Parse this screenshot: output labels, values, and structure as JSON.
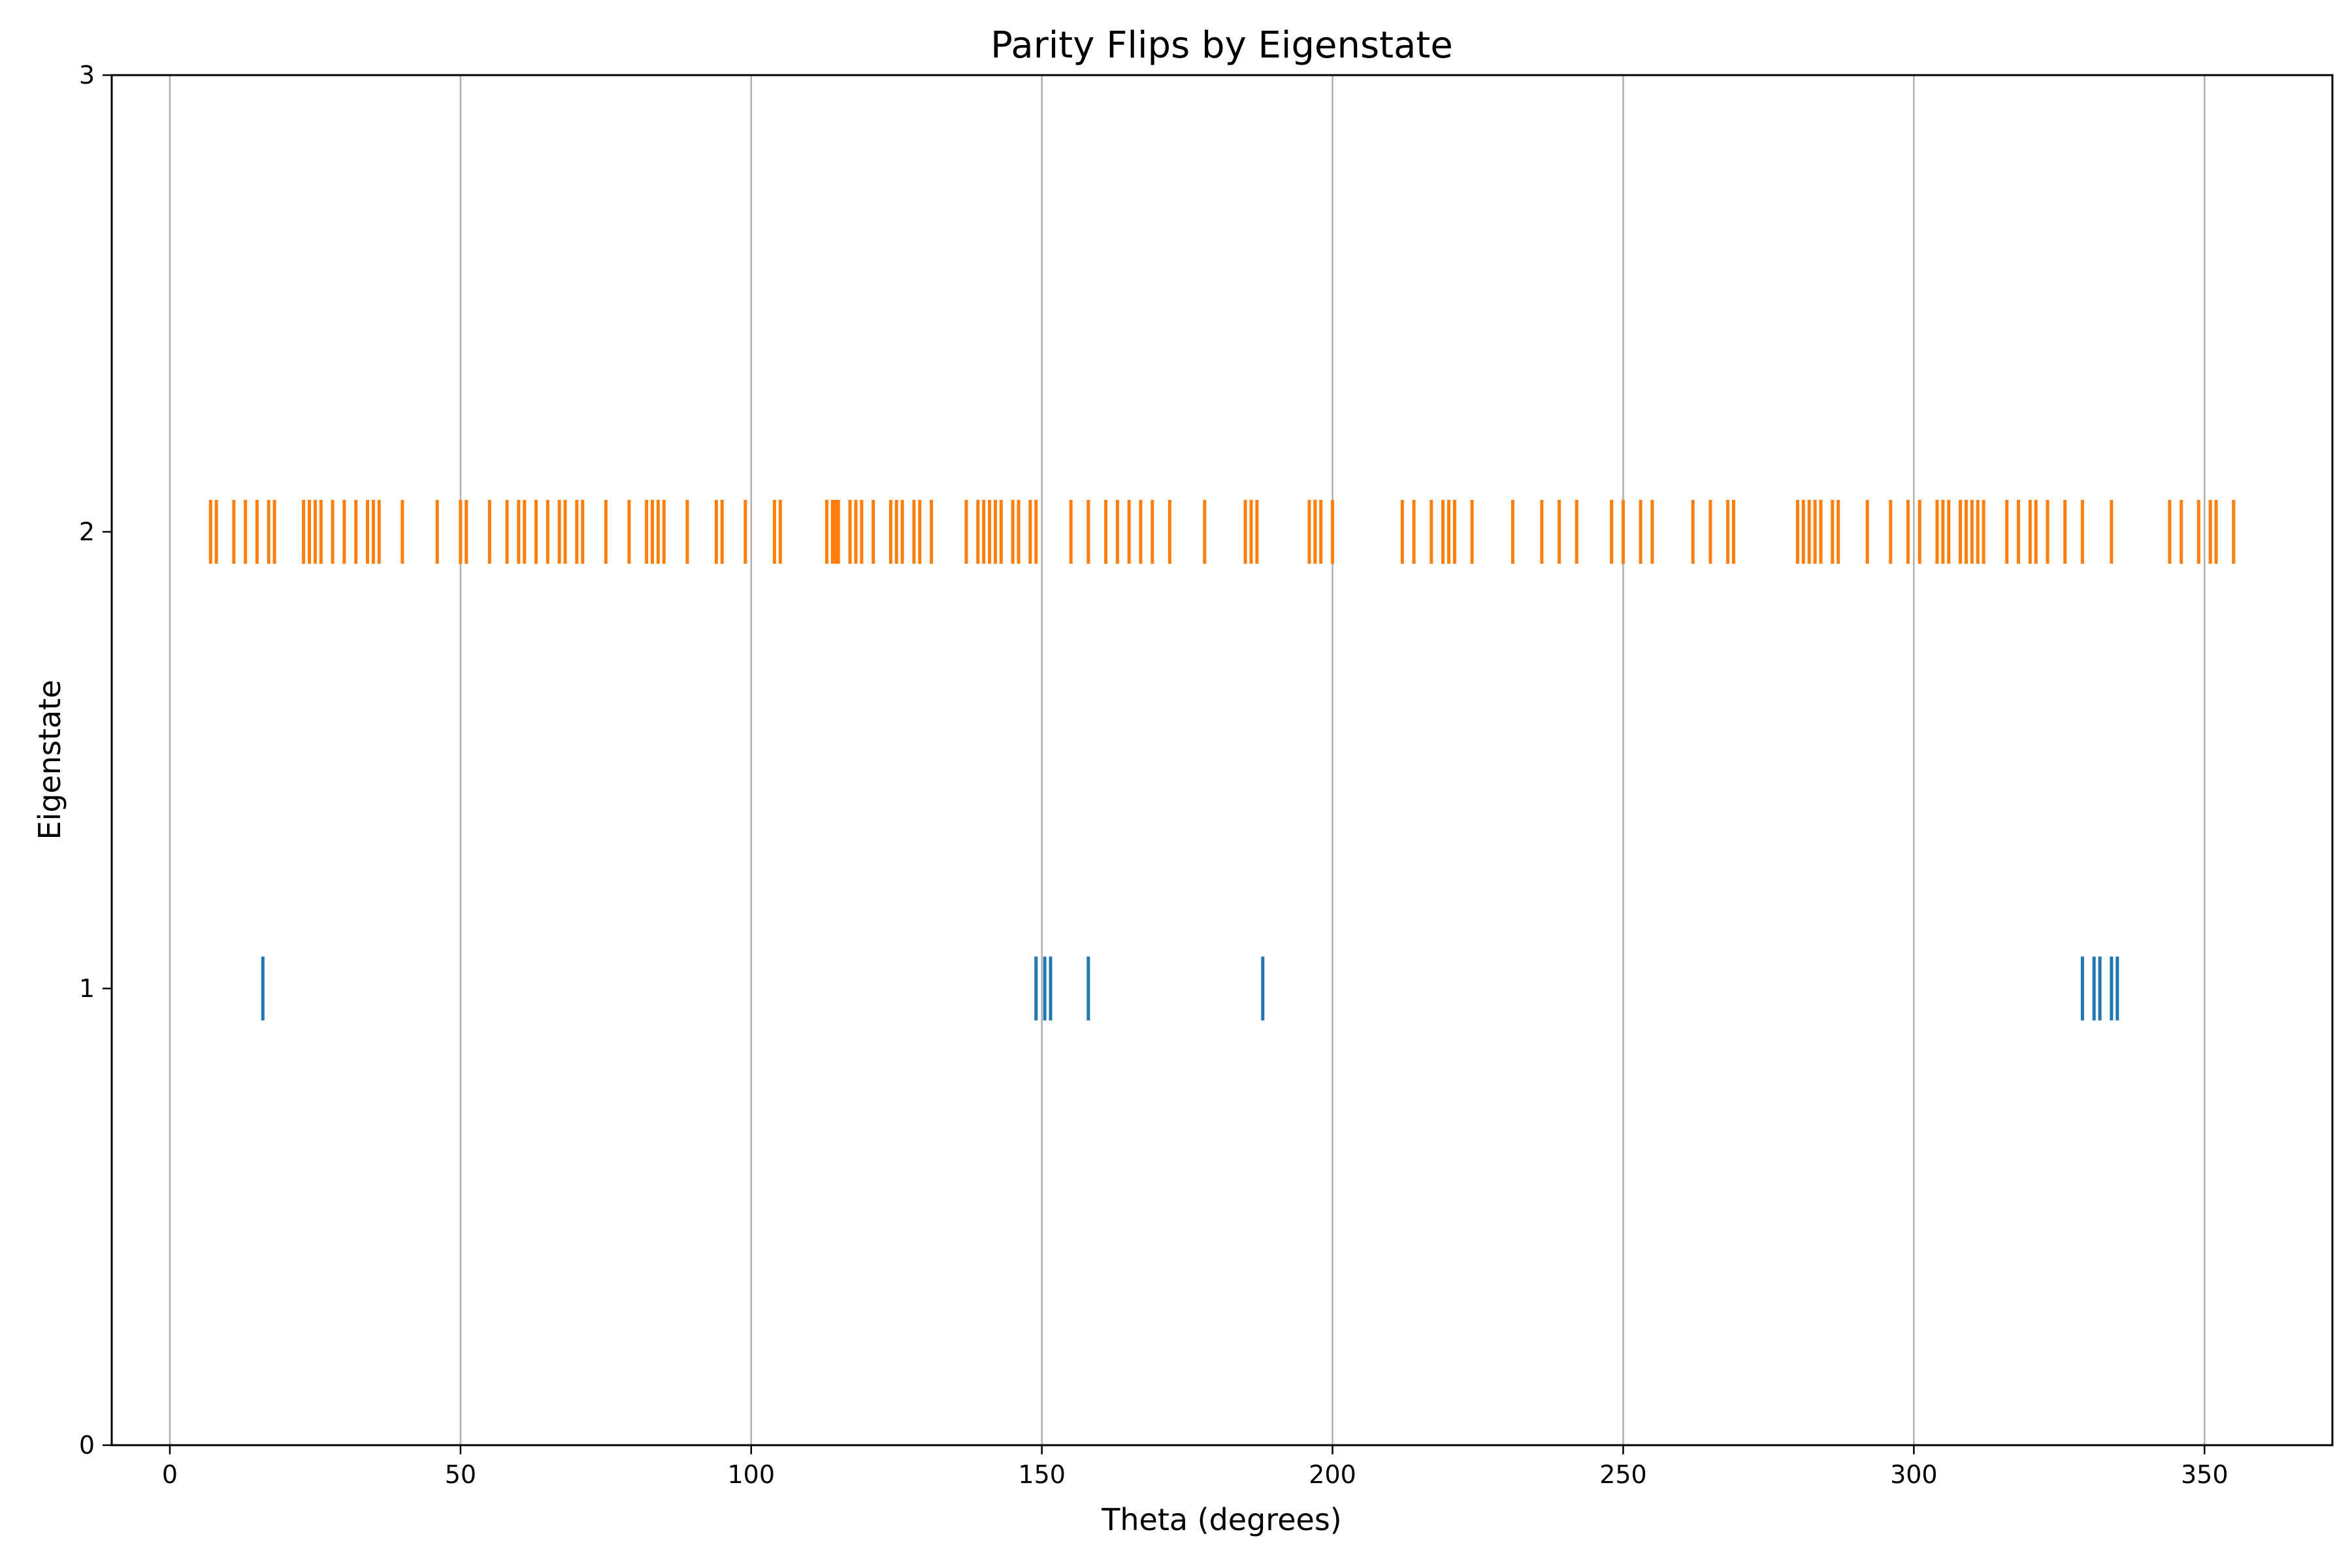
{
  "chart_data": {
    "type": "eventplot",
    "title": "Parity Flips by Eigenstate",
    "xlabel": "Theta (degrees)",
    "ylabel": "Eigenstate",
    "xlim": [
      -10,
      372
    ],
    "ylim": [
      0,
      3
    ],
    "xticks": [
      0,
      50,
      100,
      150,
      200,
      250,
      300,
      350
    ],
    "yticks": [
      0,
      1,
      2,
      3
    ],
    "grid": "x",
    "series": [
      {
        "color": "#1f77b4",
        "y": 1,
        "x": [
          16,
          149,
          150.5,
          151.5,
          158,
          188,
          329,
          331,
          332,
          334,
          335
        ]
      },
      {
        "color": "#ff7f0e",
        "y": 2,
        "x": [
          7,
          8,
          11,
          13,
          15,
          17,
          18,
          23,
          24,
          25,
          26,
          28,
          30,
          32,
          34,
          35,
          36,
          40,
          46,
          50,
          51,
          55,
          58,
          60,
          61,
          63,
          65,
          67,
          68,
          70,
          71,
          75,
          79,
          82,
          83,
          84,
          85,
          89,
          94,
          95,
          99,
          104,
          105,
          113,
          114,
          114.5,
          115,
          117,
          118,
          119,
          121,
          124,
          125,
          126,
          128,
          129,
          131,
          137,
          139,
          140,
          141,
          142,
          143,
          145,
          146,
          148,
          149,
          155,
          158,
          161,
          163,
          165,
          167,
          169,
          172,
          178,
          185,
          186,
          187,
          196,
          197,
          198,
          200,
          212,
          214,
          217,
          219,
          220,
          221,
          224,
          231,
          236,
          239,
          242,
          248,
          250,
          253,
          255,
          262,
          265,
          268,
          269,
          280,
          281,
          282,
          283,
          284,
          286,
          287,
          292,
          296,
          299,
          301,
          304,
          305,
          306,
          308,
          309,
          310,
          311,
          312,
          316,
          318,
          320,
          321,
          323,
          326,
          329,
          334,
          344,
          346,
          349,
          351,
          352,
          355
        ]
      }
    ]
  }
}
